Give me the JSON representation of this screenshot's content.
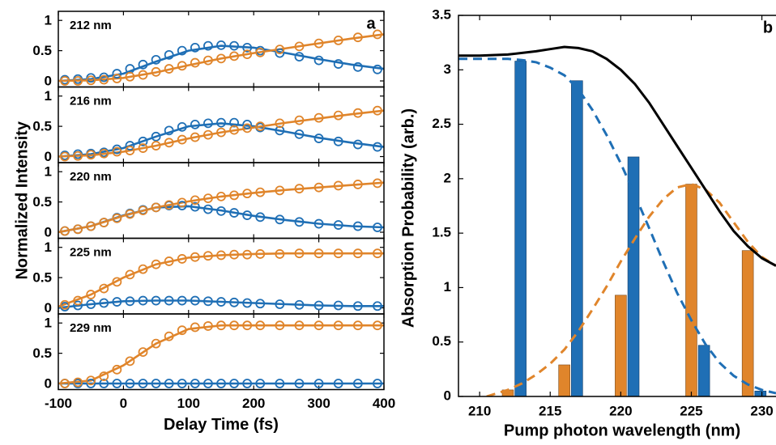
{
  "chart_data": [
    {
      "type": "scatter",
      "panel_letter": "a",
      "xlabel": "Delay Time (fs)",
      "ylabel": "Normalized Intensity",
      "xlim": [
        -100,
        400
      ],
      "ylim": [
        -0.1,
        1.15
      ],
      "xticks": [
        "-100",
        "0",
        "100",
        "200",
        "300",
        "400"
      ],
      "yticks": [
        "0",
        "0.5",
        "1"
      ],
      "colors": {
        "blue": "#1f6fb5",
        "orange": "#e0852b"
      },
      "panels": [
        {
          "label": "212 nm",
          "blue_markers": {
            "x": [
              -90,
              -70,
              -50,
              -30,
              -10,
              10,
              30,
              50,
              70,
              90,
              110,
              130,
              150,
              170,
              190,
              210,
              240,
              270,
              300,
              330,
              360,
              390
            ],
            "y": [
              0.02,
              0.03,
              0.05,
              0.06,
              0.12,
              0.2,
              0.27,
              0.35,
              0.43,
              0.5,
              0.55,
              0.58,
              0.59,
              0.58,
              0.55,
              0.5,
              0.46,
              0.4,
              0.34,
              0.28,
              0.23,
              0.19
            ]
          },
          "orange_markers": {
            "x": [
              -90,
              -70,
              -50,
              -30,
              -10,
              10,
              30,
              50,
              70,
              90,
              110,
              130,
              150,
              170,
              190,
              210,
              240,
              270,
              300,
              330,
              360,
              390
            ],
            "y": [
              0.0,
              0.0,
              0.01,
              0.02,
              0.04,
              0.07,
              0.1,
              0.15,
              0.2,
              0.25,
              0.3,
              0.34,
              0.37,
              0.41,
              0.44,
              0.47,
              0.52,
              0.57,
              0.62,
              0.67,
              0.72,
              0.77
            ]
          },
          "blue_fit": {
            "x": [
              -100,
              -50,
              0,
              50,
              100,
              150,
              200,
              250,
              300,
              350,
              400
            ],
            "y": [
              0.0,
              0.03,
              0.12,
              0.32,
              0.5,
              0.58,
              0.55,
              0.46,
              0.36,
              0.27,
              0.2
            ]
          },
          "orange_fit": {
            "x": [
              -100,
              -50,
              0,
              50,
              100,
              150,
              200,
              250,
              300,
              350,
              400
            ],
            "y": [
              0.0,
              0.01,
              0.05,
              0.14,
              0.26,
              0.37,
              0.46,
              0.54,
              0.62,
              0.7,
              0.77
            ]
          }
        },
        {
          "label": "216 nm",
          "blue_markers": {
            "x": [
              -90,
              -70,
              -50,
              -30,
              -10,
              10,
              30,
              50,
              70,
              90,
              110,
              130,
              150,
              170,
              190,
              210,
              240,
              270,
              300,
              330,
              360,
              390
            ],
            "y": [
              0.02,
              0.04,
              0.05,
              0.07,
              0.12,
              0.18,
              0.25,
              0.33,
              0.43,
              0.49,
              0.53,
              0.55,
              0.56,
              0.56,
              0.53,
              0.48,
              0.43,
              0.37,
              0.3,
              0.25,
              0.2,
              0.16
            ]
          },
          "orange_markers": {
            "x": [
              -90,
              -70,
              -50,
              -30,
              -10,
              10,
              30,
              50,
              70,
              90,
              110,
              130,
              150,
              170,
              190,
              210,
              240,
              270,
              300,
              330,
              360,
              390
            ],
            "y": [
              0.0,
              0.01,
              0.03,
              0.05,
              0.08,
              0.1,
              0.14,
              0.18,
              0.23,
              0.28,
              0.32,
              0.36,
              0.4,
              0.44,
              0.47,
              0.5,
              0.55,
              0.6,
              0.64,
              0.68,
              0.72,
              0.76
            ]
          },
          "blue_fit": {
            "x": [
              -100,
              -50,
              0,
              50,
              100,
              150,
              200,
              250,
              300,
              350,
              400
            ],
            "y": [
              0.0,
              0.04,
              0.14,
              0.33,
              0.5,
              0.55,
              0.5,
              0.41,
              0.31,
              0.23,
              0.16
            ]
          },
          "orange_fit": {
            "x": [
              -100,
              -50,
              0,
              50,
              100,
              150,
              200,
              250,
              300,
              350,
              400
            ],
            "y": [
              0.0,
              0.02,
              0.08,
              0.18,
              0.3,
              0.4,
              0.48,
              0.56,
              0.63,
              0.7,
              0.76
            ]
          }
        },
        {
          "label": "220 nm",
          "blue_markers": {
            "x": [
              -90,
              -70,
              -50,
              -30,
              -10,
              10,
              30,
              50,
              70,
              90,
              110,
              130,
              150,
              170,
              190,
              210,
              240,
              270,
              300,
              330,
              360,
              390
            ],
            "y": [
              0.02,
              0.05,
              0.1,
              0.16,
              0.24,
              0.31,
              0.37,
              0.41,
              0.44,
              0.44,
              0.42,
              0.38,
              0.35,
              0.32,
              0.28,
              0.25,
              0.21,
              0.17,
              0.14,
              0.12,
              0.1,
              0.08
            ]
          },
          "orange_markers": {
            "x": [
              -90,
              -70,
              -50,
              -30,
              -10,
              10,
              30,
              50,
              70,
              90,
              110,
              130,
              150,
              170,
              190,
              210,
              240,
              270,
              300,
              330,
              360,
              390
            ],
            "y": [
              0.02,
              0.05,
              0.1,
              0.16,
              0.23,
              0.3,
              0.36,
              0.41,
              0.45,
              0.49,
              0.53,
              0.56,
              0.59,
              0.61,
              0.64,
              0.66,
              0.69,
              0.72,
              0.74,
              0.77,
              0.79,
              0.81
            ]
          },
          "blue_fit": {
            "x": [
              -100,
              -50,
              0,
              50,
              100,
              150,
              200,
              250,
              300,
              350,
              400
            ],
            "y": [
              0.0,
              0.1,
              0.28,
              0.41,
              0.43,
              0.36,
              0.27,
              0.2,
              0.14,
              0.1,
              0.08
            ]
          },
          "orange_fit": {
            "x": [
              -100,
              -50,
              0,
              50,
              100,
              150,
              200,
              250,
              300,
              350,
              400
            ],
            "y": [
              0.0,
              0.1,
              0.27,
              0.41,
              0.51,
              0.59,
              0.65,
              0.7,
              0.74,
              0.78,
              0.82
            ]
          }
        },
        {
          "label": "225 nm",
          "blue_markers": {
            "x": [
              -90,
              -70,
              -50,
              -30,
              -10,
              10,
              30,
              50,
              70,
              90,
              110,
              130,
              150,
              170,
              190,
              210,
              240,
              270,
              300,
              330,
              360,
              390
            ],
            "y": [
              0.02,
              0.04,
              0.06,
              0.08,
              0.1,
              0.11,
              0.12,
              0.12,
              0.12,
              0.12,
              0.12,
              0.11,
              0.1,
              0.09,
              0.08,
              0.07,
              0.06,
              0.05,
              0.04,
              0.04,
              0.03,
              0.03
            ]
          },
          "orange_markers": {
            "x": [
              -90,
              -70,
              -50,
              -30,
              -10,
              10,
              30,
              50,
              70,
              90,
              110,
              130,
              150,
              170,
              190,
              210,
              240,
              270,
              300,
              330,
              360,
              390
            ],
            "y": [
              0.05,
              0.12,
              0.22,
              0.32,
              0.43,
              0.55,
              0.64,
              0.72,
              0.77,
              0.81,
              0.84,
              0.86,
              0.87,
              0.88,
              0.88,
              0.89,
              0.89,
              0.9,
              0.9,
              0.9,
              0.9,
              0.9
            ]
          },
          "blue_fit": {
            "x": [
              -100,
              -50,
              0,
              50,
              100,
              150,
              200,
              250,
              300,
              350,
              400
            ],
            "y": [
              0.0,
              0.06,
              0.11,
              0.12,
              0.12,
              0.1,
              0.08,
              0.06,
              0.04,
              0.03,
              0.03
            ]
          },
          "orange_fit": {
            "x": [
              -100,
              -50,
              0,
              50,
              100,
              150,
              200,
              250,
              300,
              350,
              400
            ],
            "y": [
              0.02,
              0.22,
              0.5,
              0.72,
              0.83,
              0.87,
              0.89,
              0.9,
              0.9,
              0.9,
              0.9
            ]
          }
        },
        {
          "label": "229 nm",
          "blue_markers": {
            "x": [
              -90,
              -70,
              -50,
              -30,
              -10,
              10,
              30,
              50,
              70,
              90,
              110,
              130,
              150,
              170,
              190,
              210,
              240,
              270,
              300,
              330,
              360,
              390
            ],
            "y": [
              0.0,
              0.0,
              0.0,
              0.0,
              0.0,
              0.0,
              0.0,
              0.0,
              0.0,
              0.0,
              0.0,
              0.0,
              0.0,
              0.0,
              0.0,
              0.0,
              0.0,
              0.0,
              0.0,
              0.0,
              0.0,
              0.0
            ]
          },
          "orange_markers": {
            "x": [
              -90,
              -70,
              -50,
              -30,
              -10,
              10,
              30,
              50,
              70,
              90,
              110,
              130,
              150,
              170,
              190,
              210,
              240,
              270,
              300,
              330,
              360,
              390
            ],
            "y": [
              0.0,
              0.02,
              0.05,
              0.12,
              0.23,
              0.37,
              0.52,
              0.66,
              0.78,
              0.88,
              0.93,
              0.95,
              0.96,
              0.96,
              0.96,
              0.96,
              0.96,
              0.96,
              0.96,
              0.96,
              0.96,
              0.96
            ]
          },
          "blue_fit": {
            "x": [
              -100,
              400
            ],
            "y": [
              0.0,
              0.0
            ]
          },
          "orange_fit": {
            "x": [
              -100,
              -50,
              0,
              50,
              100,
              150,
              200,
              250,
              300,
              350,
              400
            ],
            "y": [
              0.0,
              0.05,
              0.3,
              0.66,
              0.9,
              0.96,
              0.96,
              0.96,
              0.96,
              0.96,
              0.96
            ]
          }
        }
      ]
    },
    {
      "type": "bar",
      "panel_letter": "b",
      "xlabel": "Pump photon wavelength (nm)",
      "ylabel": "Absorption Probability (arb.)",
      "xlim": [
        208.5,
        231
      ],
      "ylim": [
        0,
        3.5
      ],
      "xticks": [
        "210",
        "215",
        "220",
        "225",
        "230"
      ],
      "yticks": [
        "0",
        "0.5",
        "1",
        "1.5",
        "2",
        "2.5",
        "3",
        "3.5"
      ],
      "bar_width_nm": 0.8,
      "colors": {
        "blue": "#1f6fb5",
        "orange": "#e0852b",
        "black": "#000000"
      },
      "orange_bars": {
        "x": [
          212,
          216,
          220,
          225,
          229
        ],
        "values": [
          0.06,
          0.29,
          0.93,
          1.95,
          1.34
        ]
      },
      "blue_bars": {
        "x": [
          212.9,
          216.9,
          220.9,
          225.9,
          229.9
        ],
        "values": [
          3.08,
          2.9,
          2.2,
          0.47,
          0.05
        ]
      },
      "black_line": {
        "x": [
          208.5,
          210,
          212,
          214,
          215,
          216,
          217,
          218,
          219,
          220,
          221,
          222,
          223,
          224,
          225,
          226,
          227,
          228,
          229,
          230,
          231
        ],
        "y": [
          3.13,
          3.13,
          3.14,
          3.17,
          3.19,
          3.21,
          3.2,
          3.17,
          3.1,
          3.0,
          2.87,
          2.7,
          2.5,
          2.3,
          2.1,
          1.9,
          1.7,
          1.52,
          1.38,
          1.27,
          1.2
        ]
      },
      "blue_dashed": {
        "x": [
          208.5,
          210,
          212,
          213,
          214,
          215,
          216,
          217,
          218,
          219,
          220,
          221,
          222,
          223,
          224,
          225,
          226,
          227,
          228,
          229,
          230,
          231
        ],
        "y": [
          3.1,
          3.1,
          3.1,
          3.09,
          3.07,
          3.02,
          2.95,
          2.82,
          2.63,
          2.4,
          2.14,
          1.85,
          1.55,
          1.24,
          0.95,
          0.7,
          0.48,
          0.31,
          0.19,
          0.11,
          0.06,
          0.03
        ]
      },
      "orange_dashed": {
        "x": [
          210.5,
          212,
          213,
          214,
          215,
          216,
          217,
          218,
          219,
          220,
          221,
          222,
          223,
          224,
          225,
          226,
          227,
          228,
          229,
          230,
          231
        ],
        "y": [
          0.0,
          0.06,
          0.12,
          0.2,
          0.3,
          0.43,
          0.6,
          0.8,
          1.01,
          1.24,
          1.45,
          1.65,
          1.81,
          1.92,
          1.95,
          1.9,
          1.78,
          1.6,
          1.42,
          1.28,
          1.2
        ]
      }
    }
  ]
}
